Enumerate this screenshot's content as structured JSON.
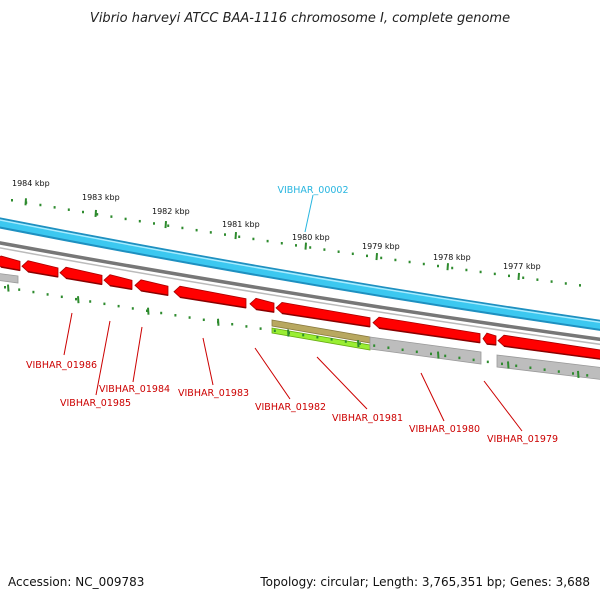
{
  "title": "Vibrio harveyi ATCC BAA-1116 chromosome I, complete genome",
  "footer": {
    "accession": "Accession: NC_009783",
    "topology": "Topology: circular; Length: 3,765,351 bp; Genes: 3,688"
  },
  "colors": {
    "cds": "#ff0000",
    "cds_dark": "#aa0000",
    "outer_track": "#3cc8f0",
    "outer_track_dark": "#1e90c0",
    "backbone": "#888888",
    "gray_feature": "#bdbdbd",
    "olive_feature": "#b8a860",
    "green_feature": "#99ee33",
    "tick": "#2e8b2e",
    "label_red": "#cc0000",
    "label_cyan": "#29b6e0"
  },
  "kbp_labels": [
    "1984 kbp",
    "1983 kbp",
    "1982 kbp",
    "1981 kbp",
    "1980 kbp",
    "1979 kbp",
    "1978 kbp",
    "1977 kbp"
  ],
  "top_gene_label": "VIBHAR_00002",
  "gene_labels": [
    "VIBHAR_01986",
    "VIBHAR_01985",
    "VIBHAR_01984",
    "VIBHAR_01983",
    "VIBHAR_01982",
    "VIBHAR_01981",
    "VIBHAR_01980",
    "VIBHAR_01979"
  ]
}
